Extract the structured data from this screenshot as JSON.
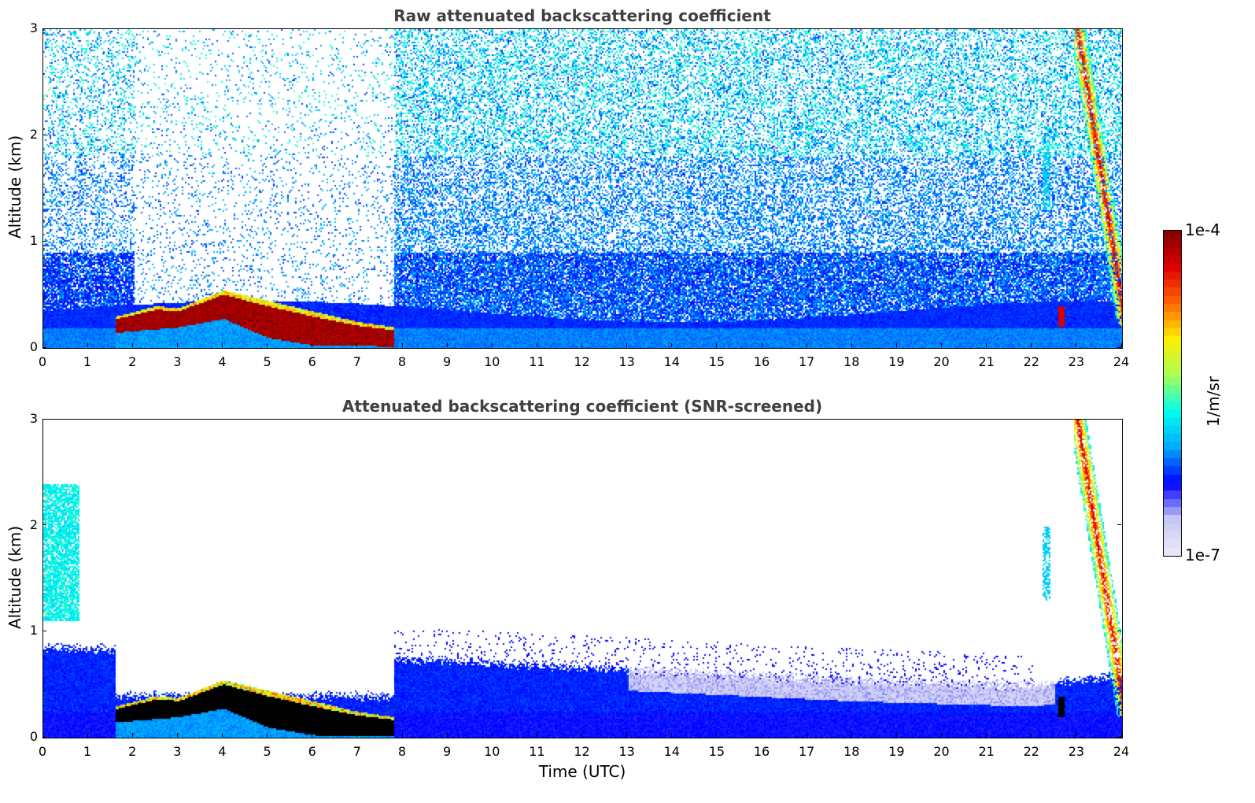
{
  "chart_data": [
    {
      "type": "heatmap",
      "title": "Raw attenuated backscattering coefficient",
      "xlabel": "",
      "ylabel": "Altitude (km)",
      "xlim": [
        0,
        24
      ],
      "ylim": [
        0,
        3
      ],
      "xticks": [
        "0",
        "1",
        "2",
        "3",
        "4",
        "5",
        "6",
        "7",
        "8",
        "9",
        "10",
        "11",
        "12",
        "13",
        "14",
        "15",
        "16",
        "17",
        "18",
        "19",
        "20",
        "21",
        "22",
        "23",
        "24"
      ],
      "yticks": [
        "0",
        "1",
        "2",
        "3"
      ],
      "screened": false,
      "features": [
        {
          "desc": "boundary-layer aerosol",
          "x_range": [
            0,
            24
          ],
          "top_km": 0.45,
          "level": "low"
        },
        {
          "desc": "fog/cloud layer",
          "x_range": [
            1.6,
            7.8
          ],
          "base_km": [
            0.3,
            0.1
          ],
          "top_km": [
            0.3,
            0.55,
            0.2
          ],
          "level": "very high"
        },
        {
          "desc": "instrument gap / low noise",
          "x_range": [
            2.0,
            7.8
          ],
          "level": "sparse"
        },
        {
          "desc": "high clouds",
          "x_range": [
            22.6,
            24
          ],
          "alt_range_km": [
            0.2,
            3.0
          ],
          "level": "high"
        }
      ]
    },
    {
      "type": "heatmap",
      "title": "Attenuated backscattering coefficient (SNR-screened)",
      "xlabel": "Time (UTC)",
      "ylabel": "Altitude (km)",
      "xlim": [
        0,
        24
      ],
      "ylim": [
        0,
        3
      ],
      "xticks": [
        "0",
        "1",
        "2",
        "3",
        "4",
        "5",
        "6",
        "7",
        "8",
        "9",
        "10",
        "11",
        "12",
        "13",
        "14",
        "15",
        "16",
        "17",
        "18",
        "19",
        "20",
        "21",
        "22",
        "23",
        "24"
      ],
      "yticks": [
        "0",
        "1",
        "2",
        "3"
      ],
      "screened": true,
      "features": [
        {
          "desc": "boundary-layer aerosol",
          "x_range": [
            0,
            24
          ],
          "top_km": [
            0.8,
            0.7,
            0.55
          ],
          "level": "low"
        },
        {
          "desc": "fog/cloud layer (saturated)",
          "x_range": [
            1.6,
            7.8
          ],
          "level": "saturated"
        },
        {
          "desc": "elevated aerosol",
          "x_range": [
            0,
            0.8
          ],
          "alt_range_km": [
            1.1,
            2.4
          ],
          "level": "medium"
        },
        {
          "desc": "high clouds",
          "x_range": [
            22.3,
            24
          ],
          "alt_range_km": [
            0.2,
            3.0
          ],
          "level": "high"
        }
      ]
    }
  ],
  "colorbar": {
    "max_label": "1e-4",
    "min_label": "1e-7",
    "unit": "1/m/sr",
    "colormap": "jet",
    "colors": [
      "#ebebfa",
      "#c8c8f5",
      "#0000ff",
      "#00aaff",
      "#00ffee",
      "#aaff55",
      "#ffee00",
      "#ff6600",
      "#dd0000",
      "#800000"
    ]
  },
  "labels": {
    "title_top": "Raw attenuated backscattering coefficient",
    "title_bottom": "Attenuated backscattering coefficient (SNR-screened)",
    "ylabel": "Altitude (km)",
    "xlabel": "Time (UTC)"
  }
}
